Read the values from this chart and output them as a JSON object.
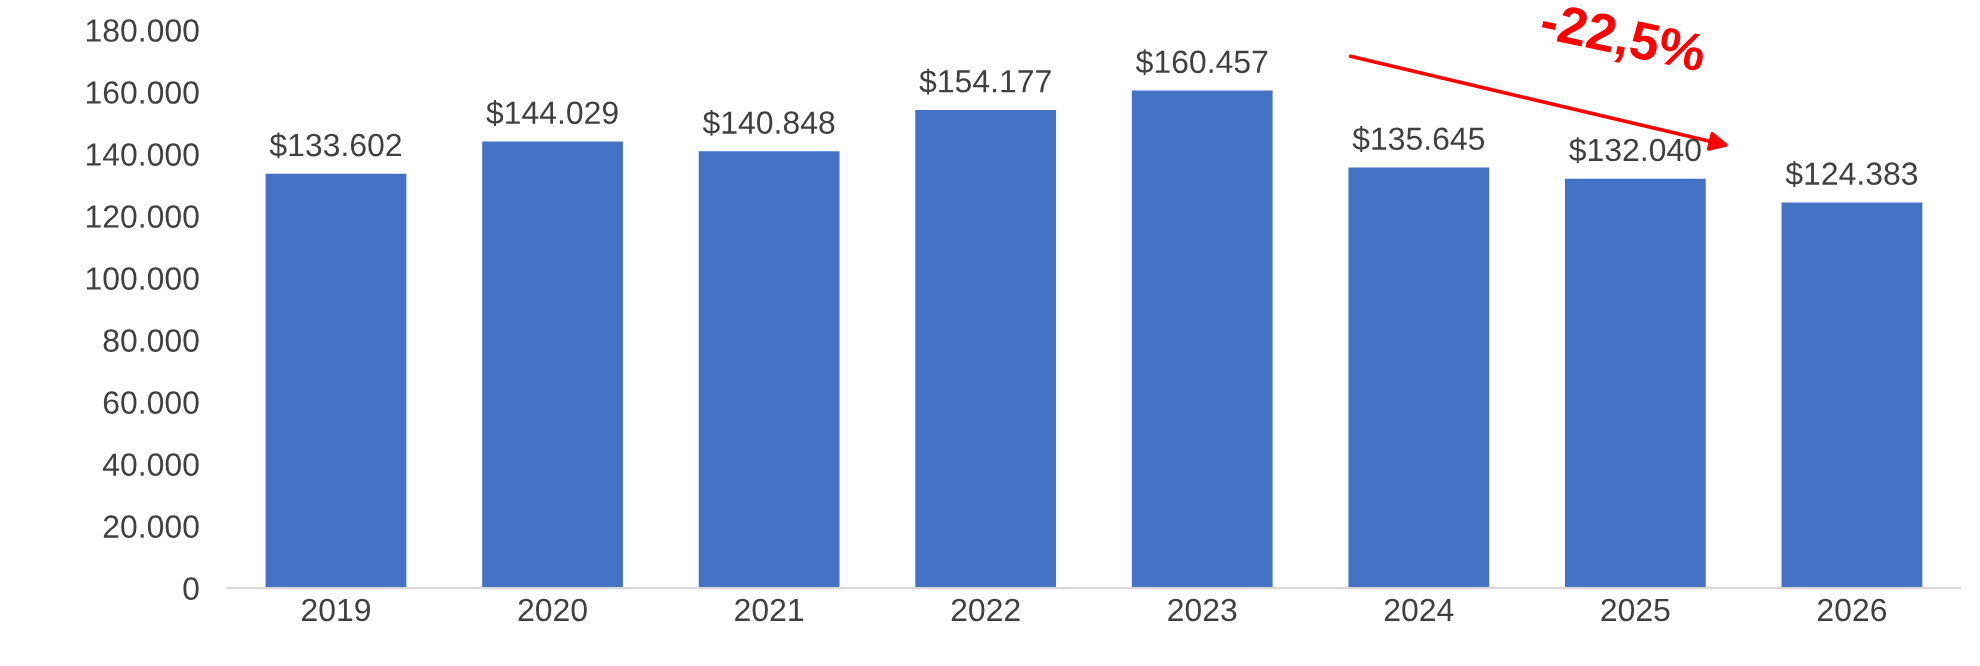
{
  "chart_data": {
    "type": "bar",
    "categories": [
      "2019",
      "2020",
      "2021",
      "2022",
      "2023",
      "2024",
      "2025",
      "2026"
    ],
    "values": [
      133602,
      144029,
      140848,
      154177,
      160457,
      135645,
      132040,
      124383
    ],
    "value_labels": [
      "$133.602",
      "$144.029",
      "$140.848",
      "$154.177",
      "$160.457",
      "$135.645",
      "$132.040",
      "$124.383"
    ],
    "color": "#4472c4",
    "ylim": [
      0,
      180000
    ],
    "yticks": [
      {
        "value": 0,
        "label": "0"
      },
      {
        "value": 20000,
        "label": "20.000"
      },
      {
        "value": 40000,
        "label": "40.000"
      },
      {
        "value": 60000,
        "label": "60.000"
      },
      {
        "value": 80000,
        "label": "80.000"
      },
      {
        "value": 100000,
        "label": "100.000"
      },
      {
        "value": 120000,
        "label": "120.000"
      },
      {
        "value": 140000,
        "label": "140.000"
      },
      {
        "value": 160000,
        "label": "160.000"
      },
      {
        "value": 180000,
        "label": "180.000"
      }
    ],
    "grid": false,
    "annotations": [
      "-22,5%"
    ]
  }
}
